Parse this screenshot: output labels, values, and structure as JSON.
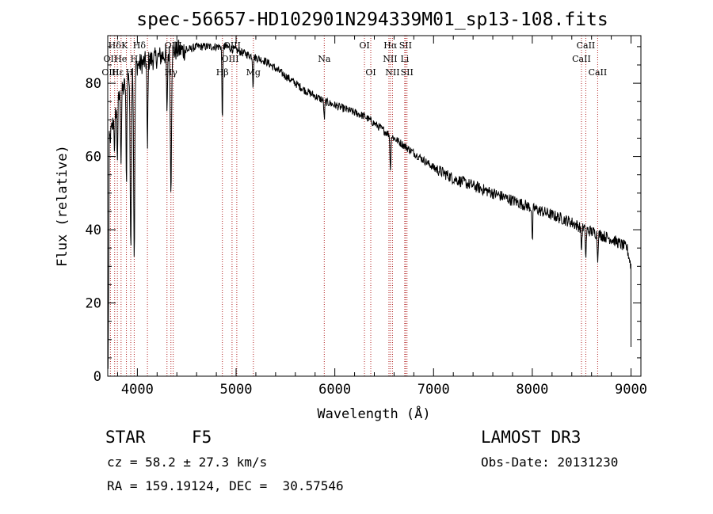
{
  "chart_data": {
    "type": "line",
    "title": "spec-56657-HD102901N294339M01_sp13-108.fits",
    "xlabel": "Wavelength (Å)",
    "ylabel": "Flux (relative)",
    "xlim": [
      3700,
      9100
    ],
    "ylim": [
      0,
      93
    ],
    "xticks": [
      4000,
      5000,
      6000,
      7000,
      8000,
      9000
    ],
    "yticks": [
      0,
      20,
      40,
      60,
      80
    ],
    "grid": false,
    "continuum": {
      "x": [
        3700,
        3760,
        3800,
        3850,
        3900,
        3950,
        4000,
        4100,
        4200,
        4300,
        4400,
        4500,
        4600,
        4700,
        4800,
        4900,
        5000,
        5100,
        5200,
        5300,
        5400,
        5500,
        5600,
        5700,
        5800,
        5900,
        6000,
        6100,
        6200,
        6300,
        6400,
        6500,
        6600,
        6700,
        6800,
        6900,
        7000,
        7100,
        7200,
        7300,
        7400,
        7500,
        7600,
        7700,
        7800,
        7900,
        8000,
        8100,
        8200,
        8300,
        8400,
        8500,
        8600,
        8700,
        8800,
        8900,
        8960,
        9000
      ],
      "y": [
        62,
        70,
        75,
        78,
        81,
        84,
        85,
        86,
        87,
        88,
        89,
        89,
        90,
        90,
        90,
        90,
        89,
        88,
        87,
        86,
        84,
        82,
        80,
        78,
        76.5,
        75,
        74,
        73,
        72,
        71,
        69,
        67,
        65,
        63,
        61,
        59,
        57,
        55.5,
        54,
        53,
        52,
        51,
        50,
        49,
        48,
        47,
        46,
        45,
        44,
        43,
        42,
        40.5,
        39.5,
        38.5,
        37.5,
        36,
        35,
        30
      ]
    },
    "absorption_lines": [
      {
        "x": 3770,
        "depth": 10
      },
      {
        "x": 3798,
        "depth": 15
      },
      {
        "x": 3835,
        "depth": 18
      },
      {
        "x": 3889,
        "depth": 28
      },
      {
        "x": 3933,
        "depth": 50
      },
      {
        "x": 3968,
        "depth": 52
      },
      {
        "x": 4102,
        "depth": 25
      },
      {
        "x": 4300,
        "depth": 18
      },
      {
        "x": 4340,
        "depth": 38
      },
      {
        "x": 4861,
        "depth": 20
      },
      {
        "x": 5172,
        "depth": 8
      },
      {
        "x": 5893,
        "depth": 5
      },
      {
        "x": 6563,
        "depth": 10
      },
      {
        "x": 8000,
        "depth": 10
      },
      {
        "x": 8498,
        "depth": 6
      },
      {
        "x": 8542,
        "depth": 8
      },
      {
        "x": 8662,
        "depth": 7
      }
    ],
    "spectral_lines": [
      {
        "label": "Hδ",
        "x": 3770,
        "row": 0
      },
      {
        "label": "OII",
        "x": 3727,
        "row": 1
      },
      {
        "label": "OIII",
        "x": 3727,
        "row": 2
      },
      {
        "label": "K",
        "x": 3870,
        "row": 0
      },
      {
        "label": "He",
        "x": 3830,
        "row": 1
      },
      {
        "label": "Hε",
        "x": 3800,
        "row": 2
      },
      {
        "label": "Hδ",
        "x": 4020,
        "row": 0
      },
      {
        "label": "H",
        "x": 3968,
        "row": 1
      },
      {
        "label": "H",
        "x": 3920,
        "row": 2
      },
      {
        "label": "OIII",
        "x": 4363,
        "row": 0
      },
      {
        "label": "G",
        "x": 4098,
        "row": 1
      },
      {
        "label": "Hγ",
        "x": 4340,
        "row": 2
      },
      {
        "label": "OIII",
        "x": 4959,
        "row": 0
      },
      {
        "label": "OIII",
        "x": 4940,
        "row": 1
      },
      {
        "label": "Hβ",
        "x": 4861,
        "row": 2
      },
      {
        "label": "Mg",
        "x": 5175,
        "row": 2
      },
      {
        "label": "Na",
        "x": 5893,
        "row": 1
      },
      {
        "label": "OI",
        "x": 6300,
        "row": 0
      },
      {
        "label": "OI",
        "x": 6364,
        "row": 2
      },
      {
        "label": "Hα",
        "x": 6563,
        "row": 0
      },
      {
        "label": "NII",
        "x": 6560,
        "row": 1
      },
      {
        "label": "NII",
        "x": 6584,
        "row": 2
      },
      {
        "label": "SII",
        "x": 6716,
        "row": 0
      },
      {
        "label": "Li",
        "x": 6708,
        "row": 1
      },
      {
        "label": "SII",
        "x": 6731,
        "row": 2
      },
      {
        "label": "CaII",
        "x": 8542,
        "row": 0
      },
      {
        "label": "CaII",
        "x": 8498,
        "row": 1
      },
      {
        "label": "CaII",
        "x": 8662,
        "row": 2
      }
    ],
    "marker_lines_x": [
      3727,
      3770,
      3798,
      3835,
      3889,
      3933,
      3968,
      4102,
      4300,
      4340,
      4363,
      4861,
      4959,
      5007,
      5175,
      5893,
      6300,
      6364,
      6548,
      6563,
      6584,
      6708,
      6716,
      6731,
      8498,
      8542,
      8662
    ]
  },
  "info": {
    "object_class": "STAR",
    "subclass": "F5",
    "survey": "LAMOST DR3",
    "cz": "cz = 58.2 ± 27.3 km/s",
    "obs_date": "Obs-Date: 20131230",
    "coords": "RA = 159.19124, DEC =  30.57546"
  },
  "colors": {
    "spectrum": "#000000",
    "marker": "#b22222",
    "axis": "#000000"
  }
}
